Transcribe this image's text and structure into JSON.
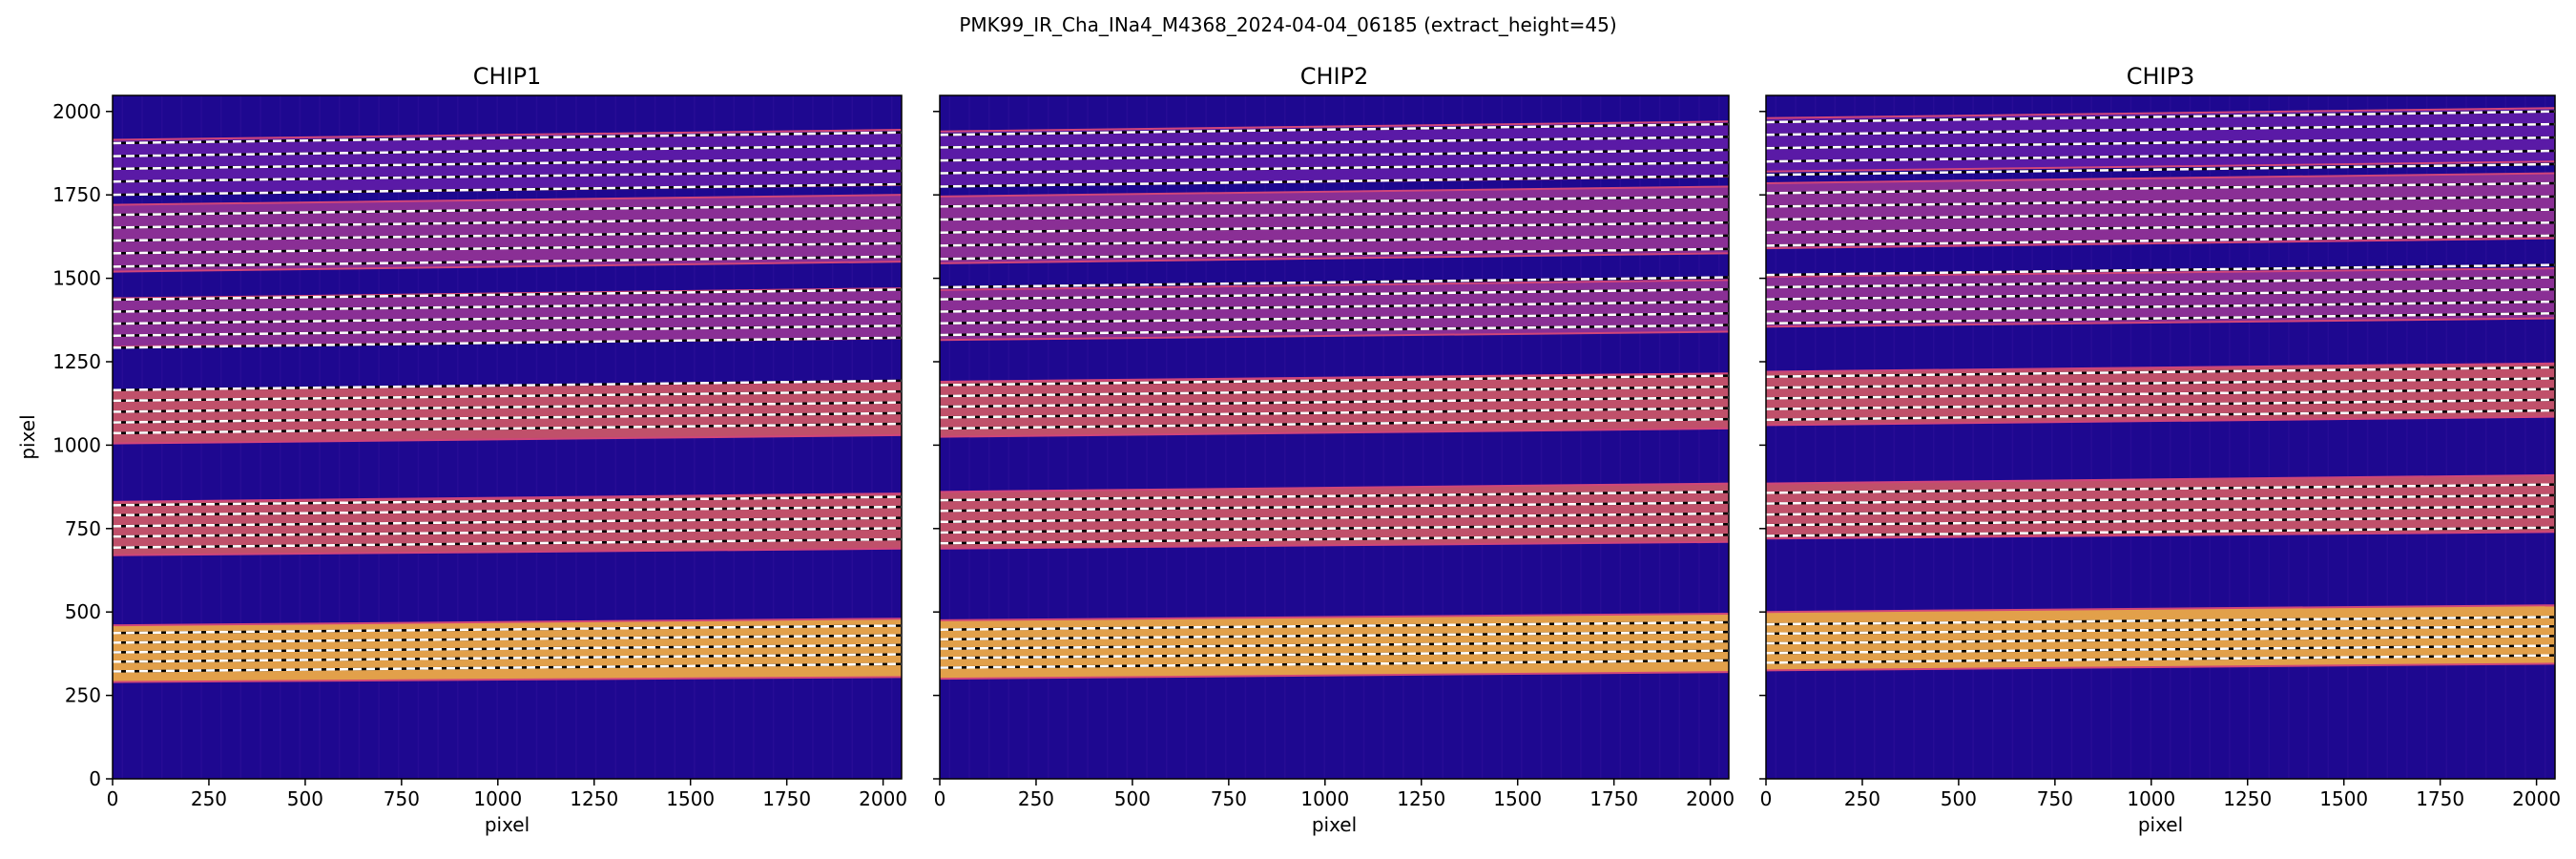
{
  "figure": {
    "suptitle": "PMK99_IR_Cha_INa4_M4368_2024-04-04_06185  (extract_height=45)"
  },
  "colors": {
    "background": "#1e0890",
    "faint_band": "#5a1aa6",
    "medium_band": "#8a2f95",
    "bright_band": "#c0506a",
    "brightest_band": "#e2a04a",
    "band_edge": "#d0457a",
    "trace_dash": "#ffffff",
    "trace_gap": "#000000"
  },
  "chart_data": [
    {
      "type": "heatmap",
      "title": "CHIP1",
      "xlabel": "pixel",
      "ylabel": "pixel",
      "xlim": [
        0,
        2048
      ],
      "ylim": [
        0,
        2048
      ],
      "xticks": [
        0,
        250,
        500,
        750,
        1000,
        1250,
        1500,
        1750,
        2000
      ],
      "yticks": [
        0,
        250,
        500,
        750,
        1000,
        1250,
        1500,
        1750,
        2000
      ],
      "ytick_labels_visible": true,
      "orders": [
        {
          "y_left": 290,
          "y_right": 305,
          "y_top_left": 460,
          "y_top_right": 480,
          "level": "brightest",
          "traces_left": [
            322,
            351,
            379,
            408,
            437
          ],
          "slope": 22
        },
        {
          "y_left": 670,
          "y_right": 690,
          "y_top_left": 830,
          "y_top_right": 855,
          "level": "bright",
          "traces_left": [
            693,
            726,
            757,
            790,
            820
          ],
          "slope": 25
        },
        {
          "y_left": 1005,
          "y_right": 1030,
          "y_top_left": 1165,
          "y_top_right": 1190,
          "level": "bright",
          "traces_left": [
            1036,
            1068,
            1100,
            1133,
            1165
          ],
          "slope": 28
        },
        {
          "y_left": 1295,
          "y_right": 1320,
          "y_top_left": 1440,
          "y_top_right": 1470,
          "level": "medium",
          "traces_left": [
            1292,
            1328,
            1364,
            1400,
            1436
          ],
          "slope": 30
        },
        {
          "y_left": 1520,
          "y_right": 1550,
          "y_top_left": 1720,
          "y_top_right": 1750,
          "level": "medium",
          "traces_left": [
            1535,
            1575,
            1613,
            1652,
            1690
          ],
          "slope": 30
        },
        {
          "y_left": 1750,
          "y_right": 1780,
          "y_top_left": 1915,
          "y_top_right": 1945,
          "level": "faint",
          "traces_left": [
            1750,
            1790,
            1828,
            1866,
            1905
          ],
          "slope": 32
        }
      ]
    },
    {
      "type": "heatmap",
      "title": "CHIP2",
      "xlabel": "pixel",
      "ylabel": "",
      "xlim": [
        0,
        2048
      ],
      "ylim": [
        0,
        2048
      ],
      "xticks": [
        0,
        250,
        500,
        750,
        1000,
        1250,
        1500,
        1750,
        2000
      ],
      "yticks": [
        0,
        250,
        500,
        750,
        1000,
        1250,
        1500,
        1750,
        2000
      ],
      "ytick_labels_visible": false,
      "orders": [
        {
          "y_left": 300,
          "y_right": 320,
          "y_top_left": 475,
          "y_top_right": 495,
          "level": "brightest",
          "traces_left": [
            333,
            362,
            390,
            418,
            447
          ],
          "slope": 22
        },
        {
          "y_left": 690,
          "y_right": 710,
          "y_top_left": 860,
          "y_top_right": 885,
          "level": "bright",
          "traces_left": [
            706,
            738,
            770,
            803,
            835
          ],
          "slope": 25
        },
        {
          "y_left": 1025,
          "y_right": 1050,
          "y_top_left": 1190,
          "y_top_right": 1215,
          "level": "bright",
          "traces_left": [
            1050,
            1083,
            1115,
            1147,
            1180
          ],
          "slope": 28
        },
        {
          "y_left": 1315,
          "y_right": 1340,
          "y_top_left": 1465,
          "y_top_right": 1495,
          "level": "medium",
          "traces_left": [
            1330,
            1365,
            1400,
            1437,
            1473
          ],
          "slope": 30
        },
        {
          "y_left": 1545,
          "y_right": 1575,
          "y_top_left": 1745,
          "y_top_right": 1775,
          "level": "medium",
          "traces_left": [
            1558,
            1598,
            1637,
            1676,
            1715
          ],
          "slope": 30
        },
        {
          "y_left": 1775,
          "y_right": 1805,
          "y_top_left": 1940,
          "y_top_right": 1970,
          "level": "faint",
          "traces_left": [
            1775,
            1815,
            1853,
            1892,
            1930
          ],
          "slope": 32
        }
      ]
    },
    {
      "type": "heatmap",
      "title": "CHIP3",
      "xlabel": "pixel",
      "ylabel": "",
      "xlim": [
        0,
        2048
      ],
      "ylim": [
        0,
        2048
      ],
      "xticks": [
        0,
        250,
        500,
        750,
        1000,
        1250,
        1500,
        1750,
        2000
      ],
      "yticks": [
        0,
        250,
        500,
        750,
        1000,
        1250,
        1500,
        1750,
        2000
      ],
      "ytick_labels_visible": false,
      "orders": [
        {
          "y_left": 325,
          "y_right": 345,
          "y_top_left": 500,
          "y_top_right": 520,
          "level": "brightest",
          "traces_left": [
            348,
            377,
            406,
            435,
            463
          ],
          "slope": 22
        },
        {
          "y_left": 720,
          "y_right": 740,
          "y_top_left": 885,
          "y_top_right": 910,
          "level": "bright",
          "traces_left": [
            728,
            760,
            792,
            825,
            857
          ],
          "slope": 25
        },
        {
          "y_left": 1060,
          "y_right": 1085,
          "y_top_left": 1220,
          "y_top_right": 1245,
          "level": "bright",
          "traces_left": [
            1076,
            1108,
            1140,
            1172,
            1205
          ],
          "slope": 28
        },
        {
          "y_left": 1355,
          "y_right": 1380,
          "y_top_left": 1505,
          "y_top_right": 1530,
          "level": "medium",
          "traces_left": [
            1365,
            1400,
            1437,
            1473,
            1510
          ],
          "slope": 30
        },
        {
          "y_left": 1590,
          "y_right": 1620,
          "y_top_left": 1785,
          "y_top_right": 1815,
          "level": "medium",
          "traces_left": [
            1598,
            1637,
            1676,
            1715,
            1755
          ],
          "slope": 30
        },
        {
          "y_left": 1820,
          "y_right": 1850,
          "y_top_left": 1980,
          "y_top_right": 2010,
          "level": "faint",
          "traces_left": [
            1810,
            1850,
            1890,
            1930,
            1968
          ],
          "slope": 32
        }
      ]
    }
  ]
}
